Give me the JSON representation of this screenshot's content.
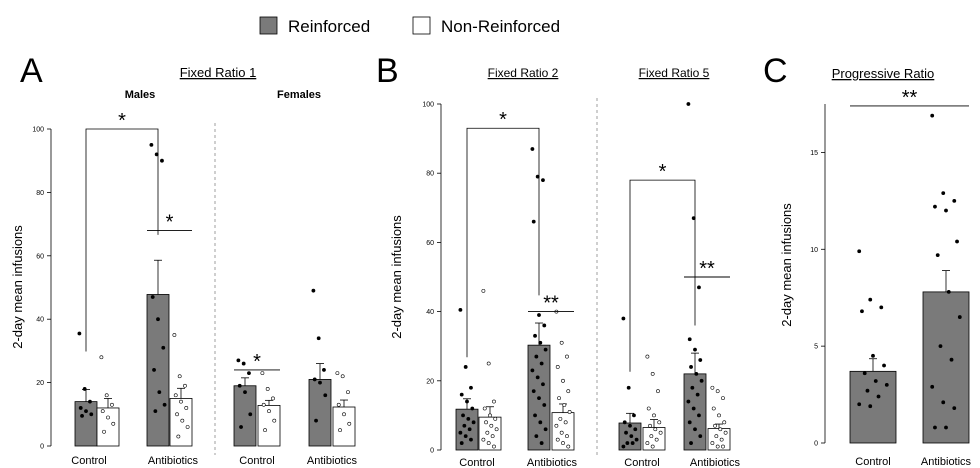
{
  "legend": [
    {
      "label": "Reinforced",
      "color": "#7a7a7a"
    },
    {
      "label": "Non-Reinforced",
      "color": "#ffffff"
    }
  ],
  "panels": {
    "A": "A",
    "B": "B",
    "C": "C"
  },
  "chart_data": [
    {
      "type": "bar",
      "panel": "A",
      "title": "Fixed Ratio 1",
      "subtitle": "Males",
      "ylabel": "2-day mean infusions",
      "ylim": [
        0,
        100
      ],
      "yticks": [
        0,
        20,
        40,
        60,
        80,
        100
      ],
      "categories": [
        "Control",
        "Antibiotics"
      ],
      "series": [
        {
          "name": "Reinforced",
          "values": [
            14,
            47.8
          ],
          "errors": [
            3.8,
            10.8
          ],
          "points": [
            [
              35.5,
              18,
              14,
              12,
              11,
              10,
              9.5
            ],
            [
              95,
              92,
              90,
              47,
              40,
              31,
              24,
              17,
              13,
              11
            ]
          ]
        },
        {
          "name": "Non-Reinforced",
          "values": [
            12,
            15
          ],
          "errors": [
            3,
            3.2
          ],
          "points": [
            [
              28,
              16,
              13,
              11,
              9,
              7,
              4.5
            ],
            [
              35,
              22,
              19,
              16,
              14,
              12,
              10,
              8,
              6,
              3
            ]
          ]
        }
      ],
      "significance": [
        {
          "type": "bracket",
          "label": "*",
          "from": [
            0,
            0
          ],
          "to": [
            1,
            0
          ],
          "y": 100
        },
        {
          "type": "line",
          "label": "*",
          "from": [
            1,
            0
          ],
          "to": [
            1,
            1
          ],
          "y": 68
        }
      ]
    },
    {
      "type": "bar",
      "panel": "A",
      "title": "",
      "subtitle": "Females",
      "ylim": [
        0,
        100
      ],
      "categories": [
        "Control",
        "Antibiotics"
      ],
      "series": [
        {
          "name": "Reinforced",
          "values": [
            19,
            21
          ],
          "errors": [
            2.5,
            5
          ],
          "points": [
            [
              27,
              26,
              23,
              19,
              17,
              10,
              6
            ],
            [
              49,
              34,
              24,
              21,
              20,
              16,
              8
            ]
          ]
        },
        {
          "name": "Non-Reinforced",
          "values": [
            12.8,
            12.3
          ],
          "errors": [
            1.6,
            2.2
          ],
          "points": [
            [
              23,
              18,
              15,
              13,
              11,
              8,
              5
            ],
            [
              23,
              22,
              17,
              13,
              10,
              7,
              5
            ]
          ]
        }
      ],
      "significance": [
        {
          "type": "line",
          "label": "*",
          "from": [
            0,
            0
          ],
          "to": [
            0,
            1
          ],
          "y": 24
        }
      ]
    },
    {
      "type": "bar",
      "panel": "B",
      "title": "Fixed Ratio 2",
      "ylabel": "2-day mean infusions",
      "ylim": [
        0,
        100
      ],
      "yticks": [
        0,
        20,
        40,
        60,
        80,
        100
      ],
      "categories": [
        "Control",
        "Antibiotics"
      ],
      "series": [
        {
          "name": "Reinforced",
          "values": [
            11.8,
            30.3
          ],
          "errors": [
            3,
            6.4
          ],
          "points": [
            [
              40.5,
              24,
              18,
              16,
              14,
              12,
              10,
              9,
              8,
              7,
              6,
              5,
              4,
              3,
              2
            ],
            [
              87,
              79,
              78,
              66,
              39,
              36,
              33,
              31,
              29,
              27,
              25,
              23,
              21,
              19,
              17,
              15,
              13,
              10,
              8,
              6,
              4,
              2
            ]
          ]
        },
        {
          "name": "Non-Reinforced",
          "values": [
            9.5,
            10.8
          ],
          "errors": [
            3,
            2.5
          ],
          "points": [
            [
              46,
              25,
              14,
              12,
              10,
              9,
              8,
              7,
              6,
              5,
              4,
              3,
              2,
              1
            ],
            [
              40,
              31,
              27,
              24,
              20,
              17,
              15,
              13,
              11,
              9,
              8,
              7,
              5,
              4,
              3,
              2,
              1
            ]
          ]
        }
      ],
      "significance": [
        {
          "type": "bracket",
          "label": "*",
          "from": [
            0,
            0
          ],
          "to": [
            1,
            0
          ],
          "y": 93
        },
        {
          "type": "line",
          "label": "**",
          "from": [
            1,
            0
          ],
          "to": [
            1,
            1
          ],
          "y": 40
        }
      ]
    },
    {
      "type": "bar",
      "panel": "B",
      "title": "Fixed Ratio 5",
      "ylim": [
        0,
        100
      ],
      "categories": [
        "Control",
        "Antibiotics"
      ],
      "series": [
        {
          "name": "Reinforced",
          "values": [
            7.8,
            22
          ],
          "errors": [
            2.8,
            6
          ],
          "points": [
            [
              38,
              18,
              10,
              8,
              7,
              6,
              5,
              4,
              3,
              2,
              2,
              1
            ],
            [
              100,
              67,
              47,
              32,
              29,
              26,
              24,
              22,
              20,
              18,
              16,
              14,
              12,
              10,
              8,
              6,
              4,
              2
            ]
          ]
        },
        {
          "name": "Non-Reinforced",
          "values": [
            6.5,
            6.2
          ],
          "errors": [
            2.3,
            1.3
          ],
          "points": [
            [
              27,
              22,
              17,
              12,
              10,
              8,
              7,
              6,
              5,
              4,
              3,
              2,
              1
            ],
            [
              18,
              17,
              15,
              12,
              10,
              8,
              7,
              6,
              5,
              4,
              3,
              2,
              1,
              1
            ]
          ]
        }
      ],
      "significance": [
        {
          "type": "bracket",
          "label": "*",
          "from": [
            0,
            0
          ],
          "to": [
            1,
            0
          ],
          "y": 78
        },
        {
          "type": "line",
          "label": "**",
          "from": [
            1,
            0
          ],
          "to": [
            1,
            1
          ],
          "y": 50
        }
      ]
    },
    {
      "type": "bar",
      "panel": "C",
      "title": "Progressive Ratio",
      "ylabel": "2-day mean infusions",
      "ylim": [
        0,
        17.5
      ],
      "yticks": [
        0,
        5,
        10,
        15
      ],
      "categories": [
        "Control",
        "Antibiotics"
      ],
      "series": [
        {
          "name": "Reinforced",
          "values": [
            3.7,
            7.8
          ],
          "errors": [
            0.65,
            1.1
          ],
          "points": [
            [
              9.9,
              7.4,
              7.0,
              6.8,
              4.5,
              4.0,
              3.6,
              3.2,
              3.0,
              2.7,
              2.4,
              2.0,
              1.9
            ],
            [
              16.9,
              12.9,
              12.5,
              12.2,
              12.0,
              10.4,
              9.7,
              7.8,
              6.5,
              5.0,
              4.3,
              2.9,
              2.1,
              1.8,
              0.8,
              0.8
            ]
          ]
        }
      ],
      "significance": [
        {
          "type": "line",
          "label": "**",
          "from": [
            0,
            0
          ],
          "to": [
            1,
            0
          ],
          "y": 17.4
        }
      ]
    }
  ]
}
